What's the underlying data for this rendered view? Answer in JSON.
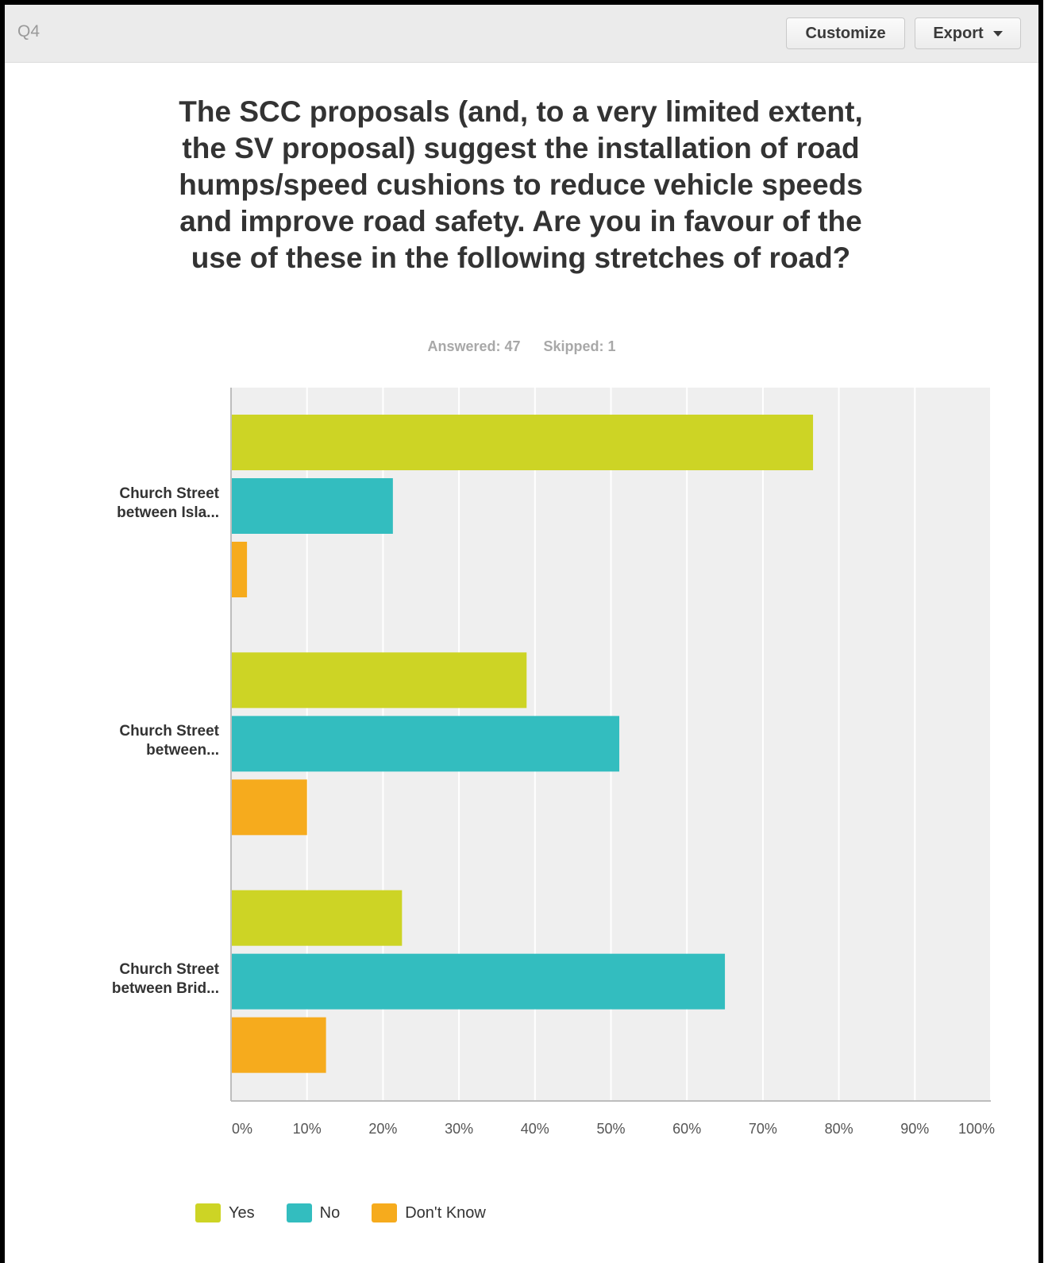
{
  "header": {
    "question_label": "Q4",
    "customize_label": "Customize",
    "export_label": "Export"
  },
  "chart_data": {
    "type": "bar",
    "orientation": "horizontal",
    "title": "The SCC proposals (and, to a very limited extent, the SV proposal) suggest the installation of road humps/speed cushions to reduce vehicle speeds and improve road safety. Are you in favour of the use of these in the following stretches of road?",
    "answered": "Answered: 47",
    "skipped": "Skipped: 1",
    "categories": [
      [
        "Church Street",
        "between Isla..."
      ],
      [
        "Church Street",
        "between..."
      ],
      [
        "Church Street",
        "between Brid..."
      ]
    ],
    "series": [
      {
        "name": "Yes",
        "color": "#cdd425",
        "values": [
          76.6,
          38.9,
          22.5
        ]
      },
      {
        "name": "No",
        "color": "#33bdbf",
        "values": [
          21.3,
          51.1,
          65.0
        ]
      },
      {
        "name": "Don't Know",
        "color": "#f6ab1d",
        "values": [
          2.1,
          10.0,
          12.5
        ]
      }
    ],
    "xlim": [
      0,
      100
    ],
    "ticks": [
      "0%",
      "10%",
      "20%",
      "30%",
      "40%",
      "50%",
      "60%",
      "70%",
      "80%",
      "90%",
      "100%"
    ],
    "grid": true,
    "legend_position": "bottom-left"
  }
}
